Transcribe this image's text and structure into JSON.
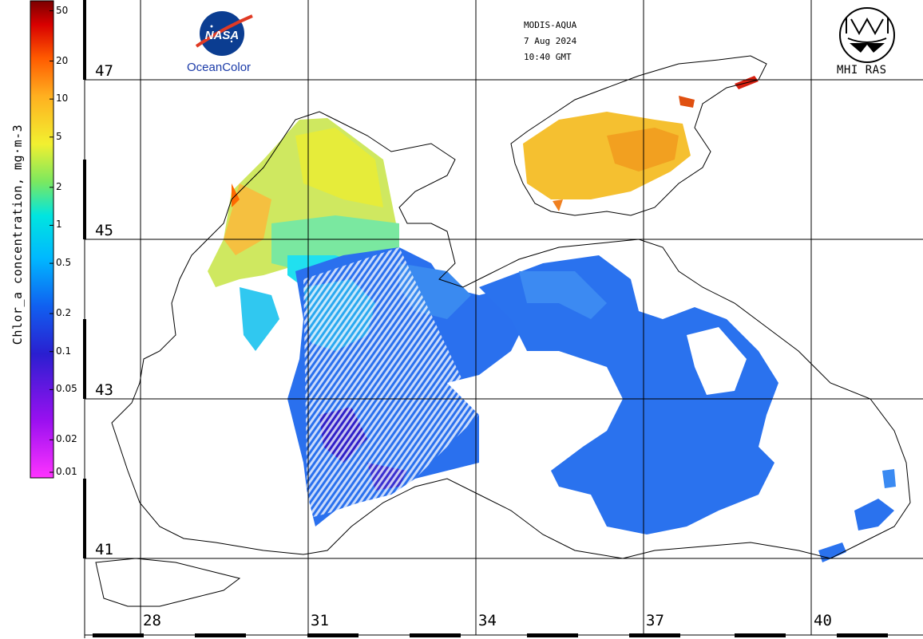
{
  "header": {
    "satellite": "MODIS-AQUA",
    "date": "7 Aug 2024",
    "time": "10:40 GMT"
  },
  "logos": {
    "left_logo_text": "NASA",
    "left_caption": "OceanColor",
    "right_caption": "MHI RAS"
  },
  "colorbar": {
    "title": "Chlor_a concentration, mg·m-3",
    "scale": "log",
    "range": [
      0.01,
      60
    ],
    "ticks": [
      "50",
      "20",
      "10",
      "5",
      "2",
      "1",
      "0.5",
      "0.2",
      "0.1",
      "0.05",
      "0.02",
      "0.01"
    ],
    "tick_values": [
      50,
      20,
      10,
      5,
      2,
      1,
      0.5,
      0.2,
      0.1,
      0.05,
      0.02,
      0.01
    ],
    "colors": [
      "#ff33ff",
      "#7a00e6",
      "#2a1fd0",
      "#1060f0",
      "#00bfff",
      "#00e5e0",
      "#7ae860",
      "#f2f030",
      "#ffb020",
      "#ff5a00",
      "#d80000",
      "#7a0000"
    ]
  },
  "grid": {
    "latitudes": [
      "47",
      "45",
      "43",
      "41"
    ],
    "longitudes": [
      "28",
      "31",
      "34",
      "37",
      "40"
    ]
  },
  "map_colors": {
    "land_outline": "#000000",
    "grid_line": "#000000",
    "background": "#ffffff"
  }
}
